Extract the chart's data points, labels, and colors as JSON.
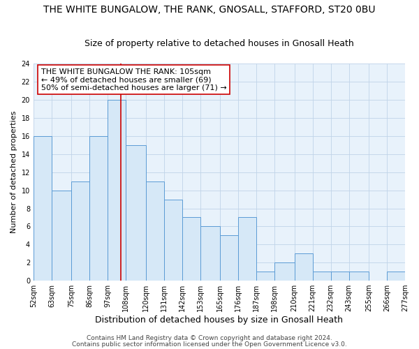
{
  "title": "THE WHITE BUNGALOW, THE RANK, GNOSALL, STAFFORD, ST20 0BU",
  "subtitle": "Size of property relative to detached houses in Gnosall Heath",
  "xlabel": "Distribution of detached houses by size in Gnosall Heath",
  "ylabel": "Number of detached properties",
  "bin_edges": [
    52,
    63,
    75,
    86,
    97,
    108,
    120,
    131,
    142,
    153,
    165,
    176,
    187,
    198,
    210,
    221,
    232,
    243,
    255,
    266,
    277
  ],
  "counts": [
    16,
    10,
    11,
    16,
    20,
    15,
    11,
    9,
    7,
    6,
    5,
    7,
    1,
    2,
    3,
    1,
    1,
    1,
    0,
    1
  ],
  "bar_facecolor": "#d6e8f7",
  "bar_edgecolor": "#5b9bd5",
  "reference_line_x": 105,
  "reference_line_color": "#cc0000",
  "ylim": [
    0,
    24
  ],
  "yticks": [
    0,
    2,
    4,
    6,
    8,
    10,
    12,
    14,
    16,
    18,
    20,
    22,
    24
  ],
  "annotation_title": "THE WHITE BUNGALOW THE RANK: 105sqm",
  "annotation_line1": "← 49% of detached houses are smaller (69)",
  "annotation_line2": "50% of semi-detached houses are larger (71) →",
  "annotation_box_facecolor": "#ffffff",
  "annotation_box_edgecolor": "#cc0000",
  "footnote1": "Contains HM Land Registry data © Crown copyright and database right 2024.",
  "footnote2": "Contains public sector information licensed under the Open Government Licence v3.0.",
  "background_color": "#ffffff",
  "axes_bg_color": "#e8f2fb",
  "grid_color": "#c0d4e8",
  "title_fontsize": 10,
  "subtitle_fontsize": 9,
  "xlabel_fontsize": 9,
  "ylabel_fontsize": 8,
  "tick_label_fontsize": 7,
  "annotation_fontsize": 8,
  "footnote_fontsize": 6.5
}
